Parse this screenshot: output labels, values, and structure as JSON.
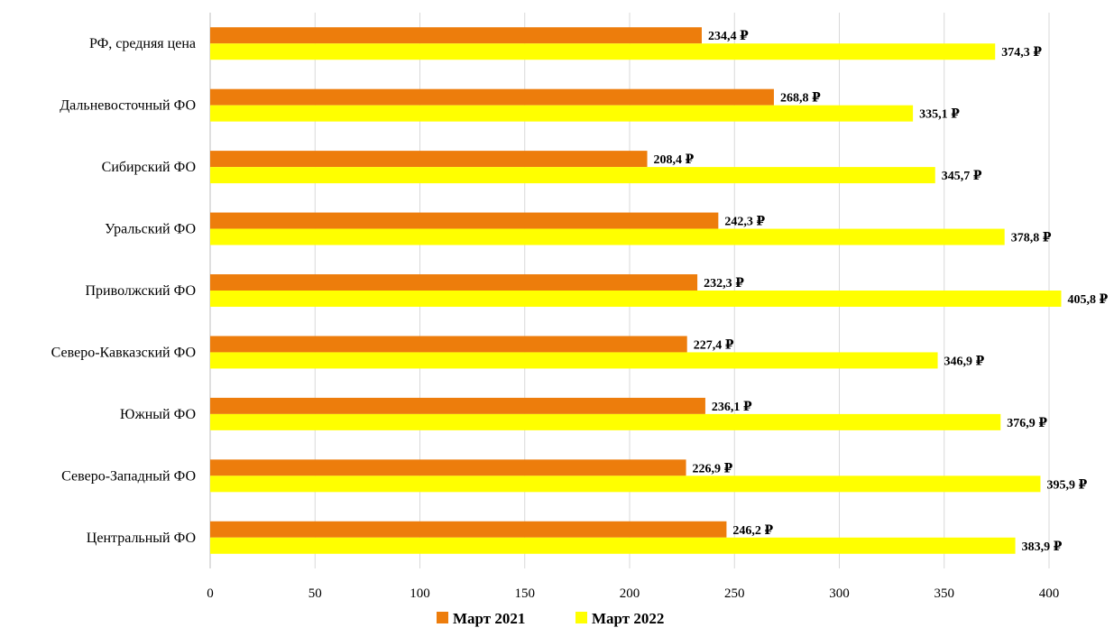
{
  "chart_data": {
    "type": "bar",
    "orientation": "horizontal",
    "categories": [
      "РФ, средняя цена",
      "Дальневосточный ФО",
      "Сибирский ФО",
      "Уральский ФО",
      "Приволжский ФО",
      "Северо-Кавказский ФО",
      "Южный ФО",
      "Северо-Западный ФО",
      "Центральный ФО"
    ],
    "series": [
      {
        "name": "Март 2021",
        "color": "#ed7d0c",
        "values": [
          234.4,
          268.8,
          208.4,
          242.3,
          232.3,
          227.4,
          236.1,
          226.9,
          246.2
        ],
        "labels": [
          "234,4 ₽",
          "268,8 ₽",
          "208,4 ₽",
          "242,3 ₽",
          "232,3 ₽",
          "227,4 ₽",
          "236,1 ₽",
          "226,9 ₽",
          "246,2 ₽"
        ]
      },
      {
        "name": "Март 2022",
        "color": "#ffff00",
        "values": [
          374.3,
          335.1,
          345.7,
          378.8,
          405.8,
          346.9,
          376.9,
          395.9,
          383.9
        ],
        "labels": [
          "374,3 ₽",
          "335,1 ₽",
          "345,7 ₽",
          "378,8 ₽",
          "405,8 ₽",
          "346,9 ₽",
          "376,9 ₽",
          "395,9 ₽",
          "383,9 ₽"
        ]
      }
    ],
    "xlim": [
      0,
      400
    ],
    "xticks": [
      "0",
      "50",
      "100",
      "150",
      "200",
      "250",
      "300",
      "350",
      "400"
    ],
    "grid": true,
    "legend": "bottom"
  }
}
